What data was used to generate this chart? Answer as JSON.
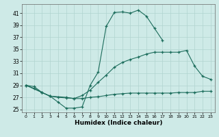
{
  "xlabel": "Humidex (Indice chaleur)",
  "background_color": "#ceeae7",
  "grid_color": "#b0d4d0",
  "line_color": "#1a6b5a",
  "xlim": [
    -0.5,
    23.5
  ],
  "ylim": [
    24.5,
    42.5
  ],
  "yticks": [
    25,
    27,
    29,
    31,
    33,
    35,
    37,
    39,
    41
  ],
  "xticks": [
    0,
    1,
    2,
    3,
    4,
    5,
    6,
    7,
    8,
    9,
    10,
    11,
    12,
    13,
    14,
    15,
    16,
    17,
    18,
    19,
    20,
    21,
    22,
    23
  ],
  "curve1_x": [
    0,
    1,
    2,
    3,
    4,
    5,
    6,
    7,
    8,
    9,
    10,
    11,
    12,
    13,
    14,
    15,
    16,
    17
  ],
  "curve1_y": [
    29.0,
    28.8,
    27.8,
    27.2,
    26.2,
    25.2,
    25.2,
    25.4,
    29.0,
    31.2,
    38.8,
    41.1,
    41.2,
    41.0,
    41.5,
    40.5,
    38.5,
    36.5
  ],
  "curve2_x": [
    0,
    2,
    3,
    5,
    6,
    7,
    8,
    9,
    10,
    11,
    12,
    13,
    14,
    15,
    16,
    17,
    18,
    19,
    20,
    21,
    22,
    23
  ],
  "curve2_y": [
    29.0,
    27.8,
    27.2,
    27.0,
    26.8,
    27.3,
    28.2,
    29.5,
    30.7,
    32.0,
    32.8,
    33.3,
    33.7,
    34.2,
    34.5,
    34.5,
    34.5,
    34.5,
    34.8,
    32.2,
    30.5,
    30.0
  ],
  "curve3_x": [
    0,
    1,
    2,
    3,
    4,
    5,
    6,
    7,
    8,
    9,
    10,
    11,
    12,
    13,
    14,
    15,
    16,
    17,
    18,
    19,
    20,
    21,
    22,
    23
  ],
  "curve3_y": [
    29.0,
    28.5,
    27.8,
    27.2,
    27.0,
    26.9,
    26.8,
    26.8,
    27.0,
    27.1,
    27.3,
    27.5,
    27.6,
    27.7,
    27.7,
    27.7,
    27.7,
    27.7,
    27.7,
    27.8,
    27.8,
    27.8,
    28.0,
    28.0
  ]
}
